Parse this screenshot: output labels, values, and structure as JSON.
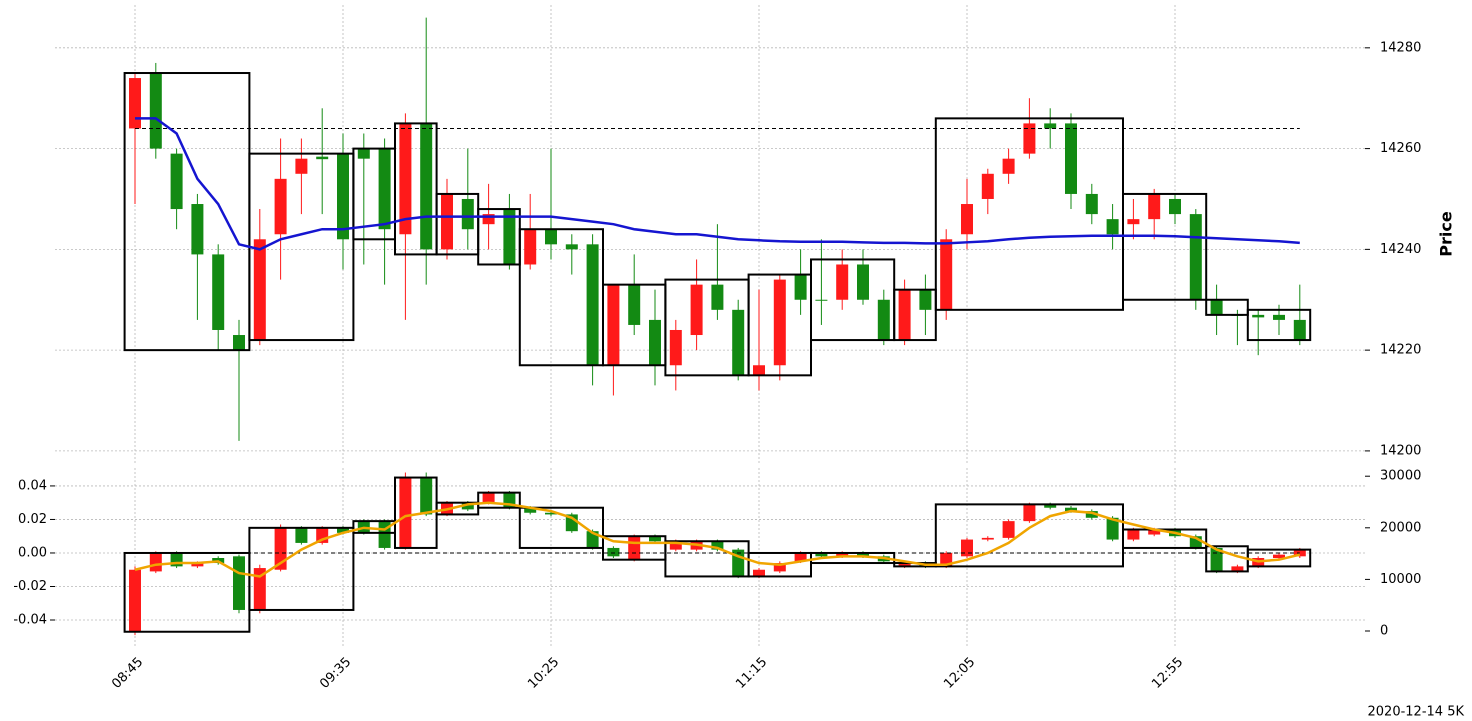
{
  "chart_data": [
    {
      "type": "candlestick",
      "ylabel": "Price",
      "y_axis_side": "right",
      "ylim": [
        14197.6,
        14288.5
      ],
      "yticks": [
        14200,
        14220,
        14240,
        14260,
        14280
      ],
      "grid": true,
      "up_color": "#ff1a1a",
      "down_color": "#138a13",
      "open": [
        14264,
        14275,
        14259,
        14249,
        14239,
        14223,
        14222,
        14243,
        14255,
        14258.4,
        14259,
        14260,
        14260,
        14243,
        14265,
        14240,
        14250,
        14245,
        14248,
        14237,
        14244,
        14241,
        14241,
        14217,
        14233,
        14226,
        14217,
        14223,
        14233,
        14228,
        14215,
        14217,
        14235,
        14230,
        14230,
        14237,
        14230,
        14222,
        14232,
        14228,
        14243,
        14250,
        14255,
        14259,
        14265,
        14265,
        14251,
        14246,
        14245,
        14246,
        14250,
        14247,
        14230,
        14227,
        14227,
        14227,
        14226
      ],
      "high": [
        14275,
        14277,
        14260,
        14251,
        14241,
        14226,
        14248,
        14262,
        14262,
        14268,
        14263,
        14263,
        14262,
        14267,
        14286,
        14254,
        14260,
        14253,
        14251,
        14251,
        14260,
        14243,
        14243,
        14233,
        14239,
        14232,
        14226,
        14238,
        14245,
        14230,
        14232,
        14235,
        14240,
        14242,
        14240,
        14240,
        14232,
        14234,
        14235,
        14244,
        14254,
        14256,
        14260,
        14270,
        14268,
        14267,
        14253,
        14249,
        14250,
        14252,
        14251,
        14248,
        14233,
        14228,
        14228,
        14229,
        14233
      ],
      "low": [
        14249,
        14258,
        14244,
        14226,
        14220,
        14202,
        14221,
        14234,
        14247,
        14247,
        14236,
        14237,
        14233,
        14226,
        14233,
        14238,
        14240,
        14240,
        14236,
        14236,
        14238,
        14235,
        14213,
        14211,
        14223,
        14213,
        14212,
        14220,
        14226,
        14214,
        14212,
        14214,
        14227,
        14225,
        14228,
        14229,
        14221,
        14221,
        14223,
        14226,
        14240,
        14247,
        14253,
        14258,
        14260,
        14248,
        14245,
        14240,
        14242,
        14242,
        14245,
        14228,
        14223,
        14221,
        14219,
        14223,
        14221
      ],
      "close": [
        14274,
        14260,
        14248,
        14239,
        14224,
        14220,
        14242,
        14254,
        14258,
        14257.9,
        14242,
        14258,
        14244,
        14265,
        14240,
        14251,
        14244,
        14247,
        14237,
        14244,
        14241,
        14240,
        14217,
        14233,
        14225,
        14217,
        14224,
        14233,
        14228,
        14215,
        14217,
        14234,
        14230,
        14229.8,
        14237,
        14230,
        14222,
        14232,
        14228,
        14242,
        14249,
        14255,
        14258,
        14265,
        14264,
        14251,
        14247,
        14243,
        14246,
        14251,
        14247,
        14230,
        14227,
        14226.8,
        14226.5,
        14226,
        14222
      ],
      "lines": [
        {
          "color": "#1515d0",
          "values": [
            14266,
            14266,
            14263,
            14254,
            14249,
            14241,
            14240,
            14242,
            14243,
            14244,
            14244,
            14244.5,
            14245,
            14246,
            14246.5,
            14246.5,
            14246.5,
            14246.5,
            14246.5,
            14246.5,
            14246.5,
            14246,
            14245.5,
            14245,
            14244,
            14243.5,
            14243,
            14243,
            14242.5,
            14242,
            14241.8,
            14241.6,
            14241.5,
            14241.5,
            14241.5,
            14241.4,
            14241.3,
            14241.3,
            14241.2,
            14241.2,
            14241.4,
            14241.6,
            14242,
            14242.3,
            14242.5,
            14242.6,
            14242.7,
            14242.7,
            14242.7,
            14242.7,
            14242.6,
            14242.4,
            14242.2,
            14242,
            14241.8,
            14241.6,
            14241.3
          ]
        }
      ],
      "hlines": [
        14264
      ],
      "boxes": [
        {
          "start": 0,
          "end": 5,
          "low": 14220,
          "high": 14275
        },
        {
          "start": 6,
          "end": 10,
          "low": 14222,
          "high": 14259
        },
        {
          "start": 11,
          "end": 12,
          "low": 14242,
          "high": 14260
        },
        {
          "start": 13,
          "end": 14,
          "low": 14239,
          "high": 14265
        },
        {
          "start": 15,
          "end": 16,
          "low": 14239,
          "high": 14251
        },
        {
          "start": 17,
          "end": 18,
          "low": 14237,
          "high": 14248
        },
        {
          "start": 19,
          "end": 22,
          "low": 14217,
          "high": 14244
        },
        {
          "start": 23,
          "end": 25,
          "low": 14217,
          "high": 14233
        },
        {
          "start": 26,
          "end": 29,
          "low": 14215,
          "high": 14234
        },
        {
          "start": 30,
          "end": 32,
          "low": 14215,
          "high": 14235
        },
        {
          "start": 33,
          "end": 36,
          "low": 14222,
          "high": 14238
        },
        {
          "start": 37,
          "end": 38,
          "low": 14222,
          "high": 14232
        },
        {
          "start": 39,
          "end": 47,
          "low": 14228,
          "high": 14266
        },
        {
          "start": 48,
          "end": 51,
          "low": 14230,
          "high": 14251
        },
        {
          "start": 52,
          "end": 53,
          "low": 14227,
          "high": 14230
        },
        {
          "start": 54,
          "end": 56,
          "low": 14222,
          "high": 14228
        }
      ]
    },
    {
      "type": "candlestick",
      "y_axis_side": "left",
      "categories": [
        "08:45",
        null,
        null,
        null,
        null,
        null,
        null,
        null,
        null,
        null,
        "09:35",
        null,
        null,
        null,
        null,
        null,
        null,
        null,
        null,
        null,
        "10:25",
        null,
        null,
        null,
        null,
        null,
        null,
        null,
        null,
        null,
        "11:15",
        null,
        null,
        null,
        null,
        null,
        null,
        null,
        null,
        null,
        "12:05",
        null,
        null,
        null,
        null,
        null,
        null,
        null,
        null,
        null,
        "12:55",
        null,
        null,
        null,
        null,
        null,
        null
      ],
      "ylim": [
        -0.0567,
        0.0507
      ],
      "yticks": [
        -0.04,
        -0.02,
        {
          "value": 0,
          "label": "0.00"
        },
        0.02,
        0.04
      ],
      "grid": true,
      "y2lim": [
        -3295,
        31590
      ],
      "y2ticks": [
        0,
        10000,
        20000,
        30000
      ],
      "up_color": "#ff1a1a",
      "down_color": "#138a13",
      "open": [
        -0.047,
        -0.011,
        0,
        -0.008,
        -0.003,
        -0.002,
        -0.034,
        -0.01,
        0.015,
        0.006,
        0.015,
        0.019,
        0.019,
        0.003,
        0.045,
        0.023,
        0.03,
        0.03,
        0.036,
        0.027,
        0.024,
        0.023,
        0.013,
        0.003,
        -0.004,
        0.01,
        0.002,
        0.002,
        0.007,
        0.002,
        -0.014,
        -0.011,
        -0.005,
        0,
        -0.002,
        0,
        -0.002,
        -0.008,
        -0.006,
        -0.008,
        -0.002,
        0.008,
        0.009,
        0.019,
        0.029,
        0.027,
        0.025,
        0.021,
        0.008,
        0.011,
        0.014,
        0.01,
        0.003,
        -0.011,
        -0.008,
        -0.003,
        -0.002
      ],
      "high": [
        -0.008,
        0.001,
        0.001,
        -0.005,
        -0.002,
        -0.001,
        -0.007,
        0.017,
        0.016,
        0.016,
        0.016,
        0.02,
        0.02,
        0.048,
        0.048,
        0.031,
        0.031,
        0.037,
        0.037,
        0.028,
        0.025,
        0.024,
        0.014,
        0.004,
        0.011,
        0.011,
        0.008,
        0.008,
        0.008,
        0.003,
        -0.009,
        -0.005,
        0.001,
        0.001,
        0.001,
        0.001,
        -0.001,
        -0.005,
        -0.005,
        0.001,
        0.009,
        0.01,
        0.02,
        0.03,
        0.03,
        0.028,
        0.026,
        0.022,
        0.015,
        0.015,
        0.015,
        0.011,
        0.004,
        -0.007,
        -0.002,
        0,
        0.003
      ],
      "low": [
        -0.049,
        -0.012,
        -0.009,
        -0.009,
        -0.007,
        -0.036,
        -0.036,
        -0.011,
        0.005,
        0.005,
        0.011,
        0.011,
        0.002,
        0.002,
        0.022,
        0.022,
        0.025,
        0.029,
        0.026,
        0.023,
        0.022,
        0.012,
        0.002,
        -0.003,
        -0.005,
        0.006,
        0.001,
        0.001,
        0.001,
        -0.015,
        -0.015,
        -0.012,
        -0.006,
        -0.003,
        -0.003,
        -0.003,
        -0.006,
        -0.009,
        -0.009,
        -0.009,
        -0.003,
        0.007,
        0.008,
        0.018,
        0.026,
        0.024,
        0.02,
        0.007,
        0.007,
        0.01,
        0.009,
        0.002,
        -0.012,
        -0.012,
        -0.009,
        -0.004,
        -0.003
      ],
      "close": [
        -0.01,
        0,
        -0.008,
        -0.006,
        -0.006,
        -0.034,
        -0.009,
        0.015,
        0.006,
        0.015,
        0.012,
        0.012,
        0.003,
        0.045,
        0.023,
        0.03,
        0.026,
        0.036,
        0.027,
        0.024,
        0.023,
        0.013,
        0.003,
        -0.002,
        0.01,
        0.007,
        0.007,
        0.007,
        0.002,
        -0.014,
        -0.01,
        -0.006,
        0,
        -0.002,
        0,
        -0.002,
        -0.005,
        -0.006,
        -0.008,
        0,
        0.008,
        0.009,
        0.019,
        0.029,
        0.027,
        0.025,
        0.021,
        0.008,
        0.014,
        0.014,
        0.01,
        0.003,
        -0.011,
        -0.008,
        -0.003,
        -0.001,
        0.002
      ],
      "lines": [
        {
          "color": "#f0a500",
          "values": [
            -0.01,
            -0.007,
            -0.006,
            -0.006,
            -0.005,
            -0.012,
            -0.014,
            -0.006,
            0.002,
            0.008,
            0.012,
            0.015,
            0.014,
            0.022,
            0.024,
            0.026,
            0.029,
            0.03,
            0.029,
            0.027,
            0.025,
            0.021,
            0.012,
            0.007,
            0.006,
            0.006,
            0.006,
            0.005,
            0.003,
            -0.002,
            -0.006,
            -0.007,
            -0.005,
            -0.003,
            -0.002,
            -0.002,
            -0.003,
            -0.005,
            -0.007,
            -0.007,
            -0.004,
            0,
            0.006,
            0.015,
            0.022,
            0.025,
            0.024,
            0.02,
            0.017,
            0.014,
            0.012,
            0.009,
            0.002,
            -0.002,
            -0.005,
            -0.004,
            -0.001
          ]
        }
      ],
      "hlines": [
        0
      ],
      "boxes": [
        {
          "start": 0,
          "end": 5,
          "low": -0.047,
          "high": 0
        },
        {
          "start": 6,
          "end": 10,
          "low": -0.034,
          "high": 0.015
        },
        {
          "start": 11,
          "end": 12,
          "low": 0.012,
          "high": 0.019
        },
        {
          "start": 13,
          "end": 14,
          "low": 0.003,
          "high": 0.045
        },
        {
          "start": 15,
          "end": 16,
          "low": 0.023,
          "high": 0.03
        },
        {
          "start": 17,
          "end": 18,
          "low": 0.027,
          "high": 0.036
        },
        {
          "start": 19,
          "end": 22,
          "low": 0.003,
          "high": 0.027
        },
        {
          "start": 23,
          "end": 25,
          "low": -0.004,
          "high": 0.01
        },
        {
          "start": 26,
          "end": 29,
          "low": -0.014,
          "high": 0.007
        },
        {
          "start": 30,
          "end": 32,
          "low": -0.014,
          "high": 0
        },
        {
          "start": 33,
          "end": 36,
          "low": -0.006,
          "high": 0
        },
        {
          "start": 37,
          "end": 38,
          "low": -0.008,
          "high": -0.006
        },
        {
          "start": 39,
          "end": 47,
          "low": -0.008,
          "high": 0.029
        },
        {
          "start": 48,
          "end": 51,
          "low": 0.003,
          "high": 0.014
        },
        {
          "start": 52,
          "end": 53,
          "low": -0.011,
          "high": 0.004
        },
        {
          "start": 54,
          "end": 56,
          "low": -0.008,
          "high": 0.002
        }
      ]
    }
  ],
  "caption": "2020-12-14 5K"
}
